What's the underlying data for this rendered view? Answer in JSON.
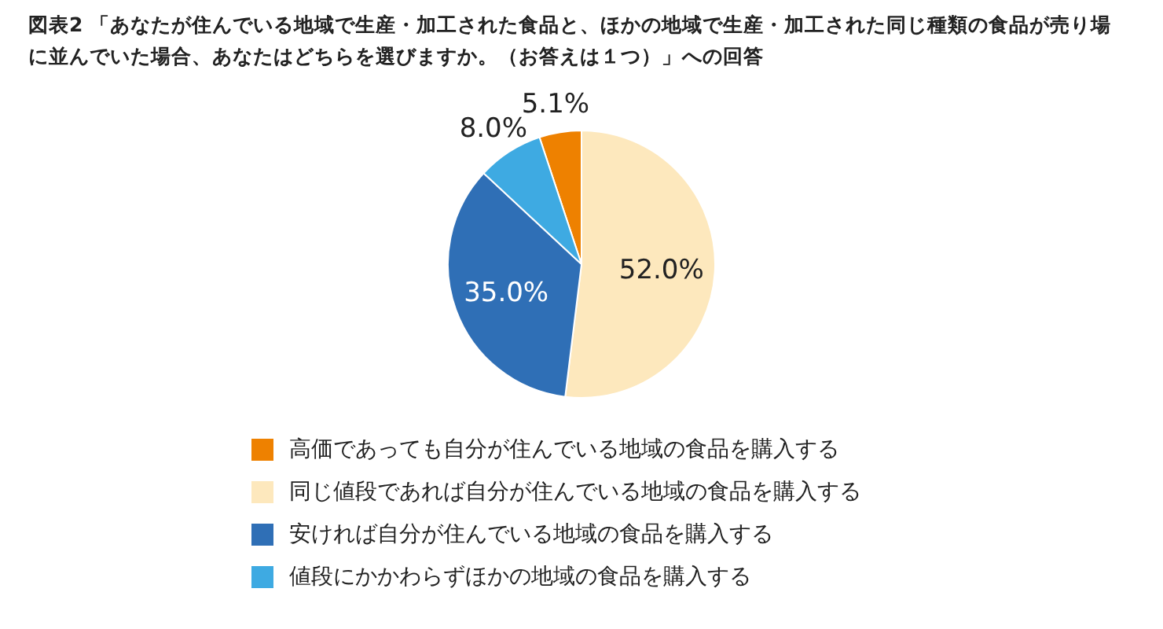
{
  "chart_data": {
    "type": "pie",
    "title": "図表2 「あなたが住んでいる地域で生産・加工された食品と、ほかの地域で生産・加工された同じ種類の食品が売り場に並んでいた場合、あなたはどちらを選びますか。（お答えは１つ）」への回答",
    "categories": [
      "高価であっても自分が住んでいる地域の食品を購入する",
      "同じ値段であれば自分が住んでいる地域の食品を購入する",
      "安ければ自分が住んでいる地域の食品を購入する",
      "値段にかかわらずほかの地域の食品を購入する"
    ],
    "values": [
      5.1,
      52.0,
      35.0,
      8.0
    ],
    "value_labels": [
      "5.1%",
      "52.0%",
      "35.0%",
      "8.0%"
    ],
    "colors": [
      "#ee8100",
      "#fde8bd",
      "#2f6fb6",
      "#3eaae2"
    ],
    "legend": "bottom"
  }
}
